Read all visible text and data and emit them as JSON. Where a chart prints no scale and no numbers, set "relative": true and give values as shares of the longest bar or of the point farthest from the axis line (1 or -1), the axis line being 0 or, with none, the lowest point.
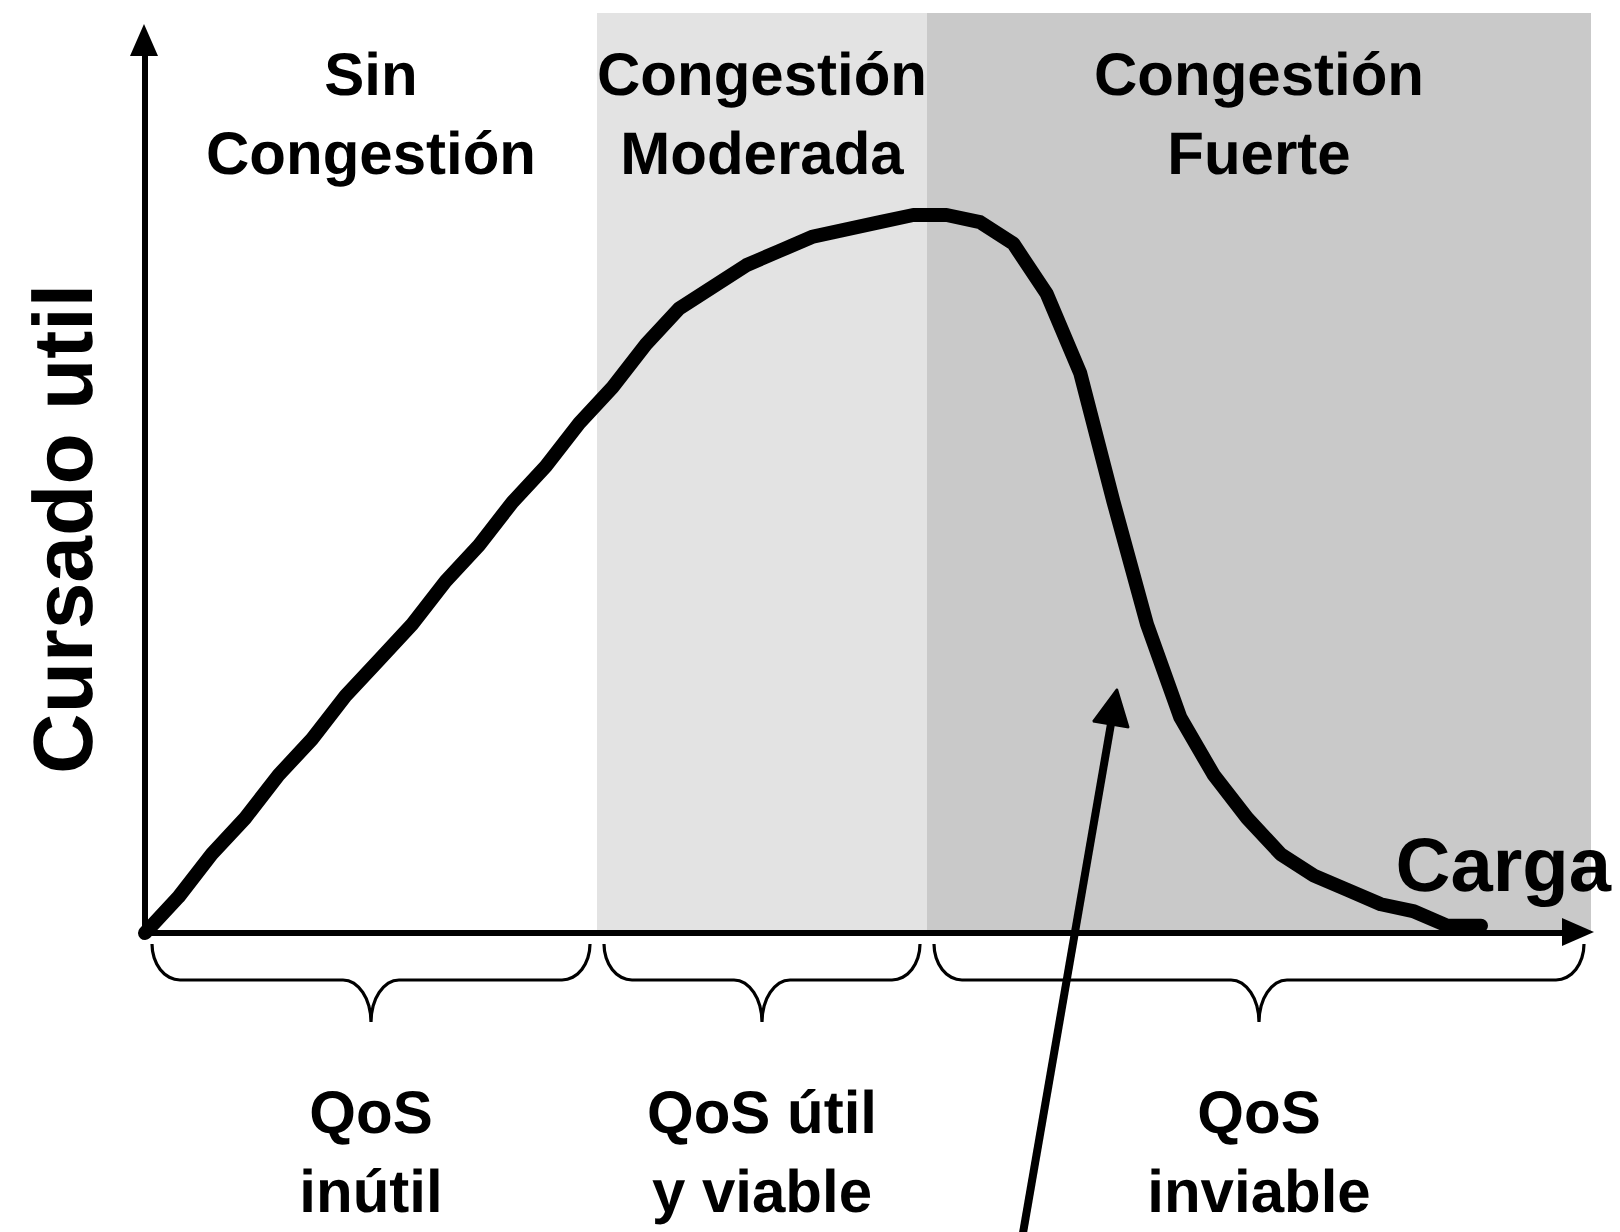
{
  "chart_data": {
    "type": "line",
    "relative": true,
    "xlabel": "Carga",
    "ylabel": "Cursado util",
    "categories": [
      null,
      null,
      null,
      null,
      null,
      null,
      null,
      null,
      null,
      null,
      null,
      null,
      null,
      null,
      null,
      null,
      null,
      null,
      null,
      null,
      null,
      null,
      null,
      null,
      null,
      null,
      null,
      null,
      null,
      null,
      null,
      null,
      null,
      null,
      null,
      null,
      null,
      null,
      null,
      null,
      null
    ],
    "values": [
      0,
      0.05,
      0.11,
      0.16,
      0.22,
      0.27,
      0.33,
      0.38,
      0.43,
      0.49,
      0.54,
      0.6,
      0.65,
      0.71,
      0.76,
      0.82,
      0.87,
      0.9,
      0.93,
      0.95,
      0.97,
      0.98,
      0.99,
      1.0,
      1.0,
      0.99,
      0.96,
      0.89,
      0.78,
      0.6,
      0.43,
      0.3,
      0.22,
      0.16,
      0.11,
      0.08,
      0.06,
      0.04,
      0.03,
      0.01,
      0.01
    ],
    "color": "#000000",
    "annotations": [
      "Sin\nCongestión",
      "Congestión\nModerada",
      "Congestión\nFuerte",
      "QoS\ninútil",
      "QoS útil\ny viable",
      "QoS\ninviable"
    ]
  }
}
